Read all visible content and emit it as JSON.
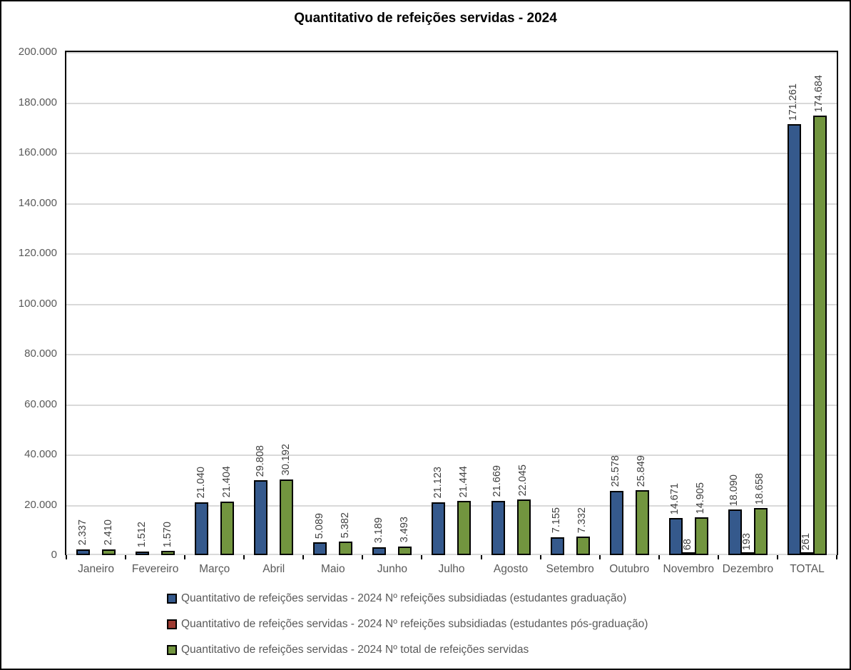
{
  "title": "Quantitativo de refeições servidas - 2024",
  "colors": {
    "background": "#FFFFFF",
    "border": "#000000",
    "gridline": "#D9D9D9",
    "axis_text": "#595959",
    "data_label_text": "#404040",
    "series_blue": "#35598C",
    "series_red": "#9E3B32",
    "series_green": "#72953F"
  },
  "chart_data": {
    "type": "bar",
    "title": "Quantitativo de refeições servidas - 2024",
    "xlabel": "",
    "ylabel": "",
    "grid": true,
    "legend_position": "bottom",
    "ylim": [
      0,
      200000
    ],
    "ytick_step": 20000,
    "ytick_labels": [
      "0",
      "20.000",
      "40.000",
      "60.000",
      "80.000",
      "100.000",
      "120.000",
      "140.000",
      "160.000",
      "180.000",
      "200.000"
    ],
    "categories": [
      "Janeiro",
      "Fevereiro",
      "Março",
      "Abril",
      "Maio",
      "Junho",
      "Julho",
      "Agosto",
      "Setembro",
      "Outubro",
      "Novembro",
      "Dezembro",
      "TOTAL"
    ],
    "series": [
      {
        "name": "Quantitativo de refeições servidas - 2024 Nº refeições subsidiadas (estudantes graduação)",
        "color": "#35598C",
        "values": [
          2337,
          1512,
          21040,
          29808,
          5089,
          3189,
          21123,
          21669,
          7155,
          25578,
          14671,
          18090,
          171261
        ],
        "labels": [
          "2.337",
          "1.512",
          "21.040",
          "29.808",
          "5.089",
          "3.189",
          "21.123",
          "21.669",
          "7.155",
          "25.578",
          "14.671",
          "18.090",
          "171.261"
        ]
      },
      {
        "name": "Quantitativo de refeições servidas - 2024 Nº refeições subsidiadas (estudantes pós-graduação)",
        "color": "#9E3B32",
        "values": [
          0,
          0,
          0,
          0,
          0,
          0,
          0,
          0,
          0,
          0,
          68,
          193,
          261
        ],
        "labels": [
          "",
          "",
          "",
          "",
          "",
          "",
          "",
          "",
          "",
          "",
          "68",
          "193",
          "261"
        ]
      },
      {
        "name": "Quantitativo de refeições servidas - 2024 Nº total de refeições servidas",
        "color": "#72953F",
        "values": [
          2410,
          1570,
          21404,
          30192,
          5382,
          3493,
          21444,
          22045,
          7332,
          25849,
          14905,
          18658,
          174684
        ],
        "labels": [
          "2.410",
          "1.570",
          "21.404",
          "30.192",
          "5.382",
          "3.493",
          "21.444",
          "22.045",
          "7.332",
          "25.849",
          "14.905",
          "18.658",
          "174.684"
        ]
      }
    ]
  }
}
